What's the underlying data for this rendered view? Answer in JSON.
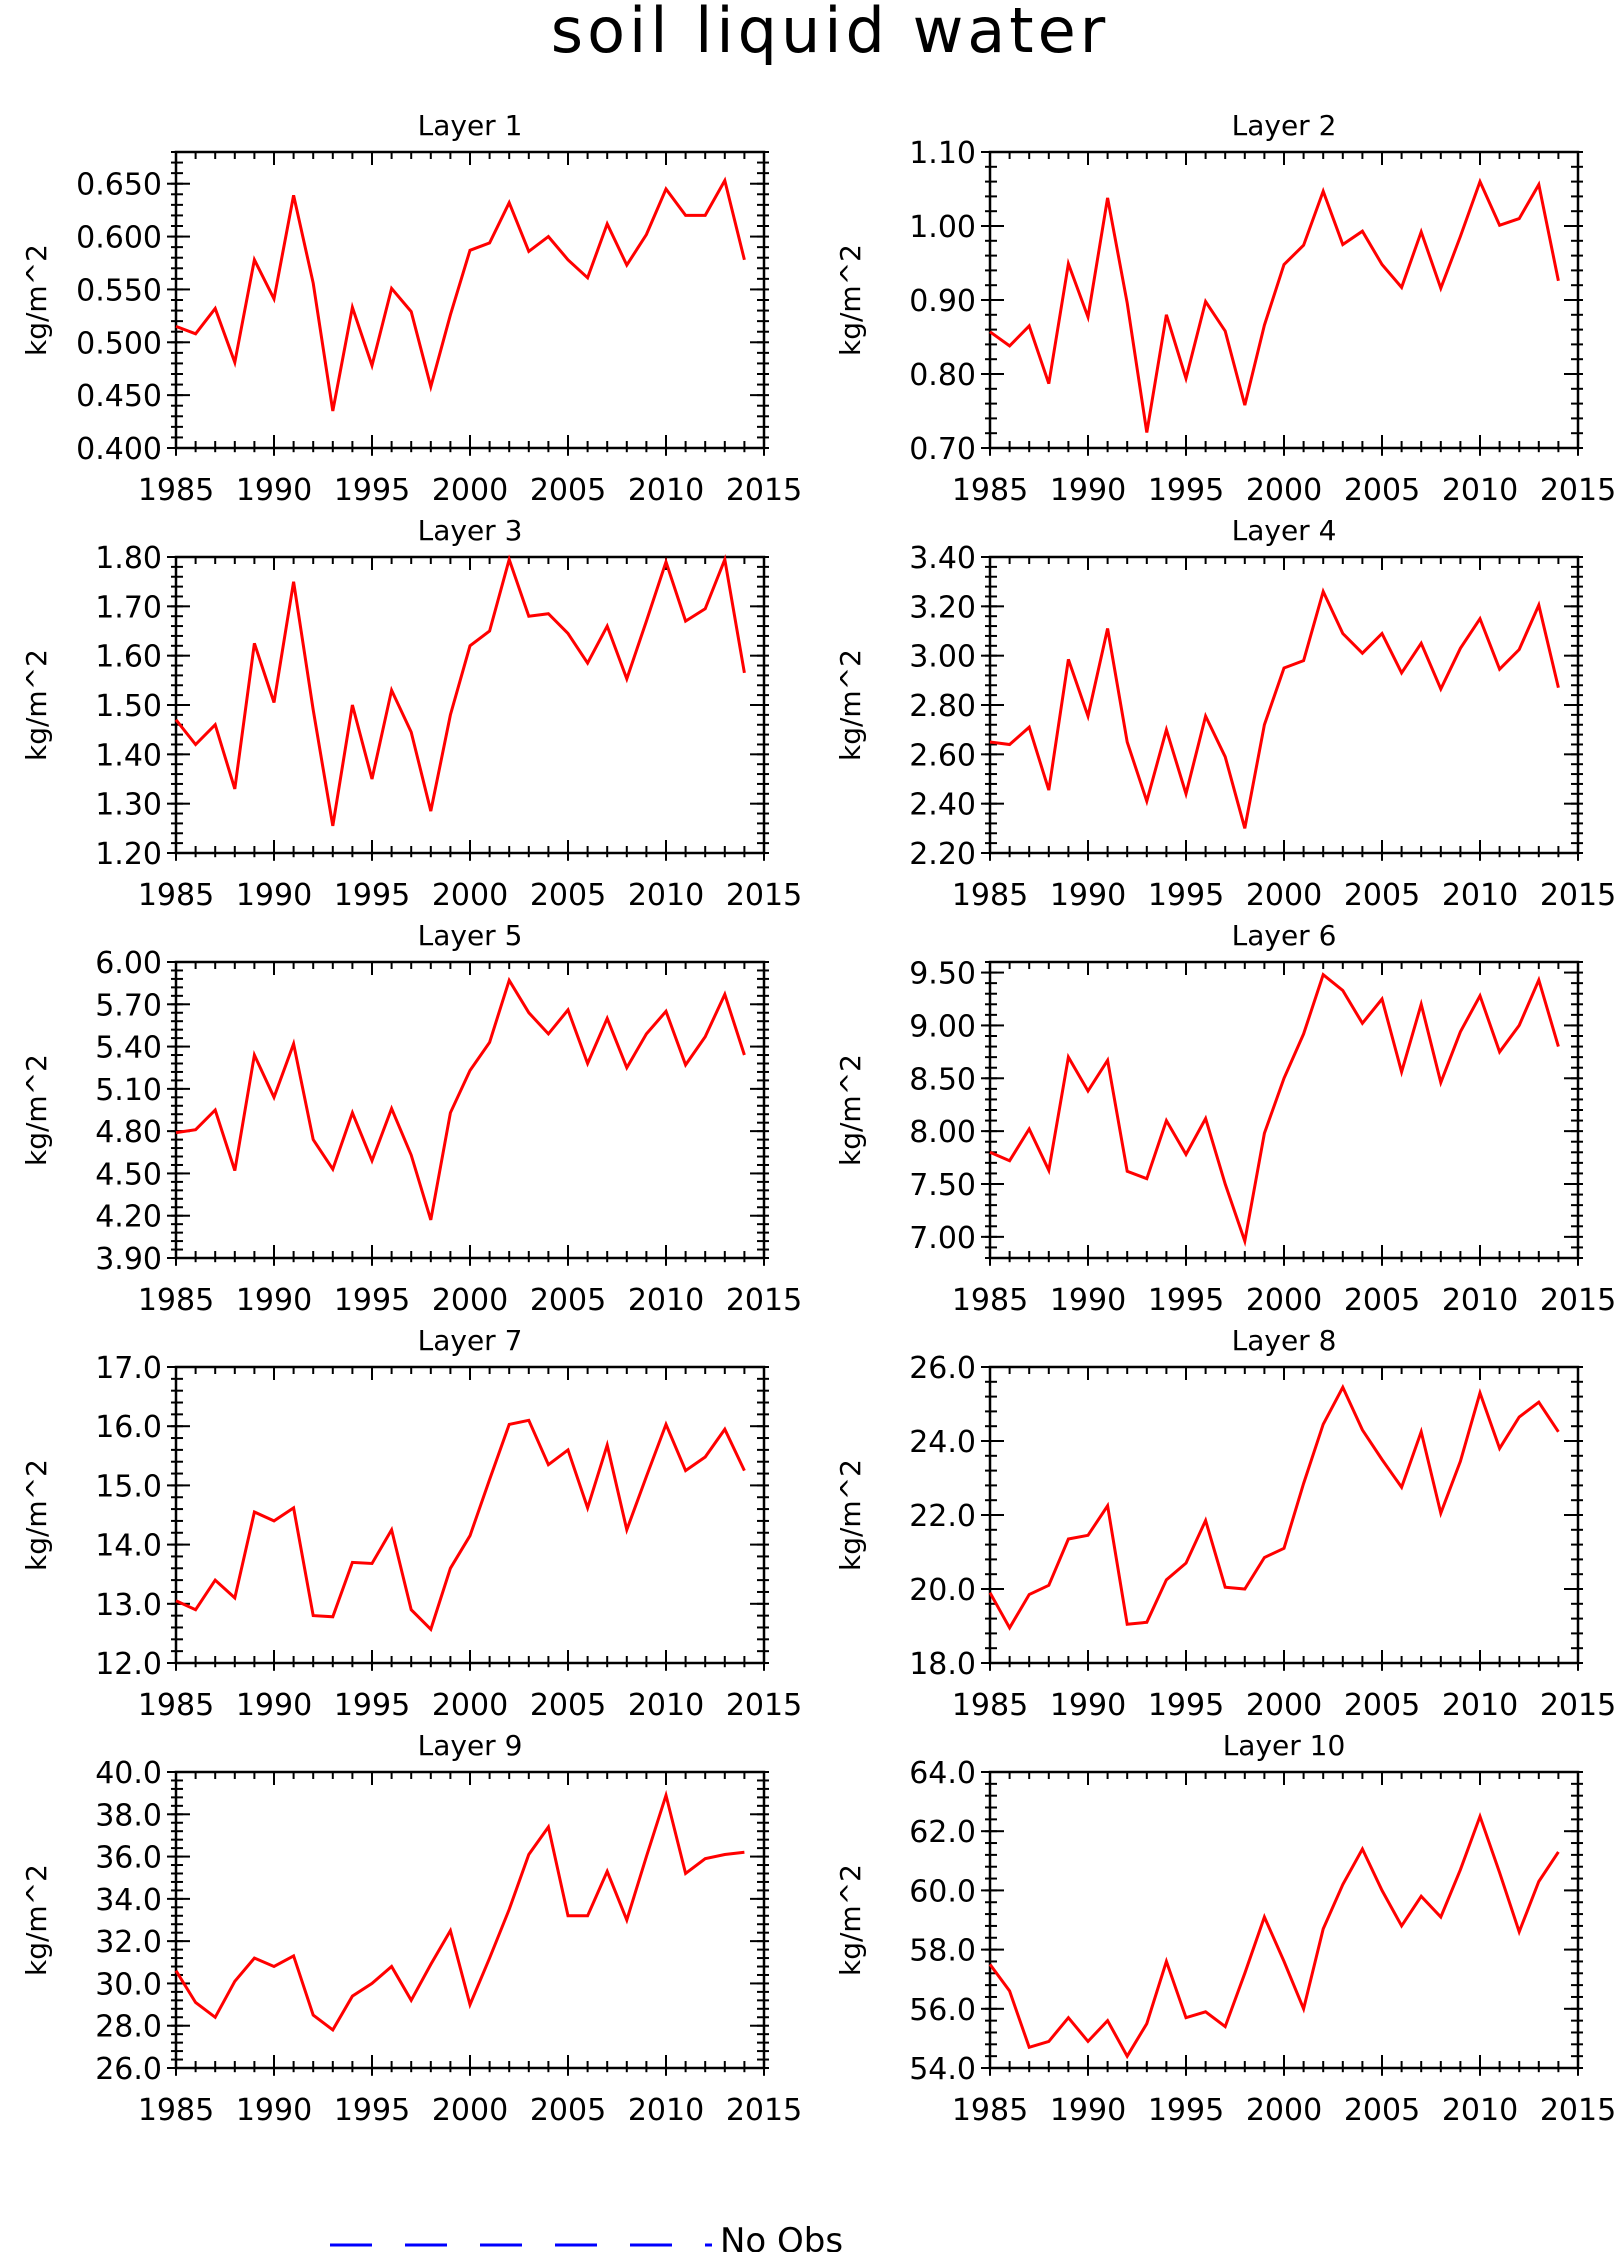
{
  "figure": {
    "title": "soil liquid water",
    "series_color": "#ff0000",
    "legend": {
      "label": "No Obs",
      "color": "#0000ff",
      "placement": "bottom-center"
    }
  },
  "chart_data": [
    {
      "type": "line",
      "title": "Layer 1",
      "ylabel": "kg/m^2",
      "xlabel": "",
      "ylim": [
        0.4,
        0.68
      ],
      "yticks": [
        "0.400",
        "0.450",
        "0.500",
        "0.550",
        "0.600",
        "0.650"
      ],
      "xlim": [
        1985,
        2015
      ],
      "xticks": [
        "1985",
        "1990",
        "1995",
        "2000",
        "2005",
        "2010",
        "2015"
      ],
      "x": [
        1985,
        1986,
        1987,
        1988,
        1989,
        1990,
        1991,
        1992,
        1993,
        1994,
        1995,
        1996,
        1997,
        1998,
        1999,
        2000,
        2001,
        2002,
        2003,
        2004,
        2005,
        2006,
        2007,
        2008,
        2009,
        2010,
        2011,
        2012,
        2013,
        2014
      ],
      "values": [
        0.515,
        0.508,
        0.532,
        0.481,
        0.578,
        0.541,
        0.639,
        0.556,
        0.435,
        0.533,
        0.478,
        0.551,
        0.529,
        0.458,
        0.526,
        0.587,
        0.594,
        0.632,
        0.586,
        0.6,
        0.578,
        0.561,
        0.612,
        0.573,
        0.602,
        0.645,
        0.62,
        0.62,
        0.653,
        0.578
      ]
    },
    {
      "type": "line",
      "title": "Layer 2",
      "ylabel": "kg/m^2",
      "xlabel": "",
      "ylim": [
        0.7,
        1.1
      ],
      "yticks": [
        "0.70",
        "0.80",
        "0.90",
        "1.00",
        "1.10"
      ],
      "xlim": [
        1985,
        2015
      ],
      "xticks": [
        "1985",
        "1990",
        "1995",
        "2000",
        "2005",
        "2010",
        "2015"
      ],
      "x": [
        1985,
        1986,
        1987,
        1988,
        1989,
        1990,
        1991,
        1992,
        1993,
        1994,
        1995,
        1996,
        1997,
        1998,
        1999,
        2000,
        2001,
        2002,
        2003,
        2004,
        2005,
        2006,
        2007,
        2008,
        2009,
        2010,
        2011,
        2012,
        2013,
        2014
      ],
      "values": [
        0.857,
        0.838,
        0.865,
        0.787,
        0.949,
        0.877,
        1.038,
        0.896,
        0.721,
        0.88,
        0.794,
        0.898,
        0.858,
        0.758,
        0.866,
        0.948,
        0.974,
        1.047,
        0.975,
        0.993,
        0.948,
        0.917,
        0.992,
        0.916,
        0.986,
        1.06,
        1.001,
        1.01,
        1.056,
        0.926
      ]
    },
    {
      "type": "line",
      "title": "Layer 3",
      "ylabel": "kg/m^2",
      "xlabel": "",
      "ylim": [
        1.2,
        1.8
      ],
      "yticks": [
        "1.20",
        "1.30",
        "1.40",
        "1.50",
        "1.60",
        "1.70",
        "1.80"
      ],
      "xlim": [
        1985,
        2015
      ],
      "xticks": [
        "1985",
        "1990",
        "1995",
        "2000",
        "2005",
        "2010",
        "2015"
      ],
      "x": [
        1985,
        1986,
        1987,
        1988,
        1989,
        1990,
        1991,
        1992,
        1993,
        1994,
        1995,
        1996,
        1997,
        1998,
        1999,
        2000,
        2001,
        2002,
        2003,
        2004,
        2005,
        2006,
        2007,
        2008,
        2009,
        2010,
        2011,
        2012,
        2013,
        2014
      ],
      "values": [
        1.47,
        1.42,
        1.46,
        1.33,
        1.625,
        1.505,
        1.75,
        1.49,
        1.255,
        1.5,
        1.35,
        1.53,
        1.445,
        1.285,
        1.48,
        1.62,
        1.65,
        1.795,
        1.68,
        1.685,
        1.645,
        1.585,
        1.66,
        1.553,
        1.67,
        1.79,
        1.67,
        1.695,
        1.795,
        1.565
      ]
    },
    {
      "type": "line",
      "title": "Layer 4",
      "ylabel": "kg/m^2",
      "xlabel": "",
      "ylim": [
        2.2,
        3.4
      ],
      "yticks": [
        "2.20",
        "2.40",
        "2.60",
        "2.80",
        "3.00",
        "3.20",
        "3.40"
      ],
      "xlim": [
        1985,
        2015
      ],
      "xticks": [
        "1985",
        "1990",
        "1995",
        "2000",
        "2005",
        "2010",
        "2015"
      ],
      "x": [
        1985,
        1986,
        1987,
        1988,
        1989,
        1990,
        1991,
        1992,
        1993,
        1994,
        1995,
        1996,
        1997,
        1998,
        1999,
        2000,
        2001,
        2002,
        2003,
        2004,
        2005,
        2006,
        2007,
        2008,
        2009,
        2010,
        2011,
        2012,
        2013,
        2014
      ],
      "values": [
        2.65,
        2.64,
        2.71,
        2.455,
        2.985,
        2.755,
        3.11,
        2.65,
        2.41,
        2.7,
        2.44,
        2.755,
        2.59,
        2.3,
        2.72,
        2.95,
        2.98,
        3.26,
        3.09,
        3.01,
        3.09,
        2.93,
        3.05,
        2.865,
        3.03,
        3.15,
        2.945,
        3.025,
        3.205,
        2.87
      ]
    },
    {
      "type": "line",
      "title": "Layer 5",
      "ylabel": "kg/m^2",
      "xlabel": "",
      "ylim": [
        3.9,
        6.0
      ],
      "yticks": [
        "3.90",
        "4.20",
        "4.50",
        "4.80",
        "5.10",
        "5.40",
        "5.70",
        "6.00"
      ],
      "xlim": [
        1985,
        2015
      ],
      "xticks": [
        "1985",
        "1990",
        "1995",
        "2000",
        "2005",
        "2010",
        "2015"
      ],
      "x": [
        1985,
        1986,
        1987,
        1988,
        1989,
        1990,
        1991,
        1992,
        1993,
        1994,
        1995,
        1996,
        1997,
        1998,
        1999,
        2000,
        2001,
        2002,
        2003,
        2004,
        2005,
        2006,
        2007,
        2008,
        2009,
        2010,
        2011,
        2012,
        2013,
        2014
      ],
      "values": [
        4.79,
        4.81,
        4.95,
        4.52,
        5.34,
        5.04,
        5.42,
        4.74,
        4.53,
        4.93,
        4.59,
        4.96,
        4.63,
        4.17,
        4.93,
        5.23,
        5.43,
        5.87,
        5.64,
        5.49,
        5.66,
        5.28,
        5.6,
        5.25,
        5.49,
        5.65,
        5.27,
        5.47,
        5.77,
        5.34
      ]
    },
    {
      "type": "line",
      "title": "Layer 6",
      "ylabel": "kg/m^2",
      "xlabel": "",
      "ylim": [
        6.8,
        9.6
      ],
      "yticks": [
        "7.00",
        "7.50",
        "8.00",
        "8.50",
        "9.00",
        "9.50"
      ],
      "xlim": [
        1985,
        2015
      ],
      "xticks": [
        "1985",
        "1990",
        "1995",
        "2000",
        "2005",
        "2010",
        "2015"
      ],
      "x": [
        1985,
        1986,
        1987,
        1988,
        1989,
        1990,
        1991,
        1992,
        1993,
        1994,
        1995,
        1996,
        1997,
        1998,
        1999,
        2000,
        2001,
        2002,
        2003,
        2004,
        2005,
        2006,
        2007,
        2008,
        2009,
        2010,
        2011,
        2012,
        2013,
        2014
      ],
      "values": [
        7.8,
        7.72,
        8.02,
        7.63,
        8.7,
        8.38,
        8.67,
        7.62,
        7.55,
        8.1,
        7.78,
        8.12,
        7.5,
        6.96,
        7.98,
        8.5,
        8.92,
        9.48,
        9.33,
        9.02,
        9.25,
        8.56,
        9.2,
        8.46,
        8.94,
        9.28,
        8.75,
        9.0,
        9.43,
        8.8
      ]
    },
    {
      "type": "line",
      "title": "Layer 7",
      "ylabel": "kg/m^2",
      "xlabel": "",
      "ylim": [
        12.0,
        17.0
      ],
      "yticks": [
        "12.0",
        "13.0",
        "14.0",
        "15.0",
        "16.0",
        "17.0"
      ],
      "xlim": [
        1985,
        2015
      ],
      "xticks": [
        "1985",
        "1990",
        "1995",
        "2000",
        "2005",
        "2010",
        "2015"
      ],
      "x": [
        1985,
        1986,
        1987,
        1988,
        1989,
        1990,
        1991,
        1992,
        1993,
        1994,
        1995,
        1996,
        1997,
        1998,
        1999,
        2000,
        2001,
        2002,
        2003,
        2004,
        2005,
        2006,
        2007,
        2008,
        2009,
        2010,
        2011,
        2012,
        2013,
        2014
      ],
      "values": [
        13.05,
        12.9,
        13.4,
        13.1,
        14.55,
        14.4,
        14.62,
        12.8,
        12.78,
        13.7,
        13.68,
        14.25,
        12.9,
        12.57,
        13.6,
        14.15,
        15.1,
        16.03,
        16.1,
        15.35,
        15.6,
        14.62,
        15.68,
        14.25,
        15.15,
        16.03,
        15.25,
        15.48,
        15.95,
        15.25
      ]
    },
    {
      "type": "line",
      "title": "Layer 8",
      "ylabel": "kg/m^2",
      "xlabel": "",
      "ylim": [
        18.0,
        26.0
      ],
      "yticks": [
        "18.0",
        "20.0",
        "22.0",
        "24.0",
        "26.0"
      ],
      "xlim": [
        1985,
        2015
      ],
      "xticks": [
        "1985",
        "1990",
        "1995",
        "2000",
        "2005",
        "2010",
        "2015"
      ],
      "x": [
        1985,
        1986,
        1987,
        1988,
        1989,
        1990,
        1991,
        1992,
        1993,
        1994,
        1995,
        1996,
        1997,
        1998,
        1999,
        2000,
        2001,
        2002,
        2003,
        2004,
        2005,
        2006,
        2007,
        2008,
        2009,
        2010,
        2011,
        2012,
        2013,
        2014
      ],
      "values": [
        19.9,
        18.95,
        19.85,
        20.1,
        21.35,
        21.45,
        22.25,
        19.05,
        19.1,
        20.25,
        20.7,
        21.85,
        20.05,
        20.0,
        20.85,
        21.1,
        22.85,
        24.45,
        25.45,
        24.3,
        23.5,
        22.75,
        24.25,
        22.05,
        23.45,
        25.3,
        23.8,
        24.65,
        25.05,
        24.25
      ]
    },
    {
      "type": "line",
      "title": "Layer 9",
      "ylabel": "kg/m^2",
      "xlabel": "",
      "ylim": [
        26.0,
        40.0
      ],
      "yticks": [
        "26.0",
        "28.0",
        "30.0",
        "32.0",
        "34.0",
        "36.0",
        "38.0",
        "40.0"
      ],
      "xlim": [
        1985,
        2015
      ],
      "xticks": [
        "1985",
        "1990",
        "1995",
        "2000",
        "2005",
        "2010",
        "2015"
      ],
      "x": [
        1985,
        1986,
        1987,
        1988,
        1989,
        1990,
        1991,
        1992,
        1993,
        1994,
        1995,
        1996,
        1997,
        1998,
        1999,
        2000,
        2001,
        2002,
        2003,
        2004,
        2005,
        2006,
        2007,
        2008,
        2009,
        2010,
        2011,
        2012,
        2013,
        2014
      ],
      "values": [
        30.6,
        29.1,
        28.4,
        30.1,
        31.2,
        30.8,
        31.3,
        28.5,
        27.8,
        29.4,
        30.0,
        30.8,
        29.2,
        30.9,
        32.5,
        29.0,
        31.2,
        33.5,
        36.1,
        37.4,
        33.2,
        33.2,
        35.3,
        33.0,
        36.0,
        38.9,
        35.2,
        35.9,
        36.1,
        36.2
      ]
    },
    {
      "type": "line",
      "title": "Layer 10",
      "ylabel": "kg/m^2",
      "xlabel": "",
      "ylim": [
        54.0,
        64.0
      ],
      "yticks": [
        "54.0",
        "56.0",
        "58.0",
        "60.0",
        "62.0",
        "64.0"
      ],
      "xlim": [
        1985,
        2015
      ],
      "xticks": [
        "1985",
        "1990",
        "1995",
        "2000",
        "2005",
        "2010",
        "2015"
      ],
      "x": [
        1985,
        1986,
        1987,
        1988,
        1989,
        1990,
        1991,
        1992,
        1993,
        1994,
        1995,
        1996,
        1997,
        1998,
        1999,
        2000,
        2001,
        2002,
        2003,
        2004,
        2005,
        2006,
        2007,
        2008,
        2009,
        2010,
        2011,
        2012,
        2013,
        2014
      ],
      "values": [
        57.5,
        56.6,
        54.7,
        54.9,
        55.7,
        54.9,
        55.6,
        54.4,
        55.5,
        57.6,
        55.7,
        55.9,
        55.4,
        57.2,
        59.1,
        57.6,
        56.0,
        58.7,
        60.2,
        61.4,
        60.0,
        58.8,
        59.8,
        59.1,
        60.7,
        62.5,
        60.6,
        58.6,
        60.3,
        61.3
      ]
    }
  ]
}
